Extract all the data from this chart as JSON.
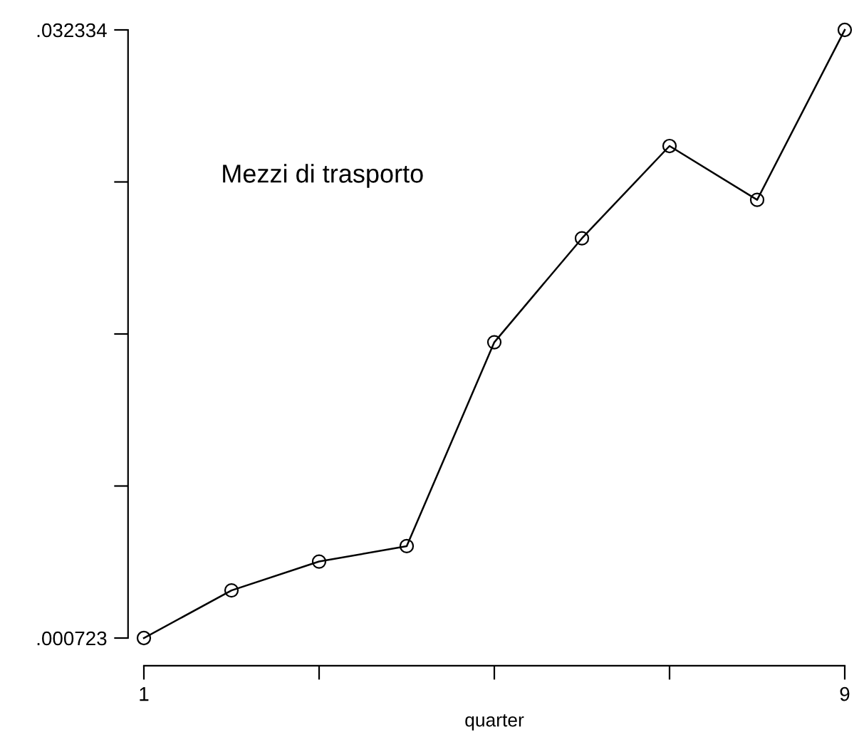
{
  "chart_data": {
    "type": "line",
    "title": "Mezzi di trasporto",
    "xlabel": "quarter",
    "x": [
      1,
      2,
      3,
      4,
      5,
      6,
      7,
      8,
      9
    ],
    "series": [
      {
        "color": "#000000",
        "values": [
          0.000723,
          0.0032,
          0.0047,
          0.0055,
          0.0161,
          0.0215,
          0.0263,
          0.0235,
          0.032334
        ]
      }
    ],
    "xlim": [
      1,
      9
    ],
    "ylim": [
      0.000723,
      0.032334
    ],
    "xticks": [
      1,
      {
        "value": 3,
        "label": null
      },
      {
        "value": 5,
        "label": null
      },
      {
        "value": 7,
        "label": null
      },
      9
    ],
    "yticks": [
      {
        "value": 0.000723,
        "label": ".000723"
      },
      {
        "value": 0.00862575,
        "label": null
      },
      {
        "value": 0.0165285,
        "label": null
      },
      {
        "value": 0.02443125,
        "label": null
      },
      {
        "value": 0.032334,
        "label": ".032334"
      }
    ],
    "marker": "circle",
    "line_style": "solid",
    "grid": false,
    "legend": false
  }
}
